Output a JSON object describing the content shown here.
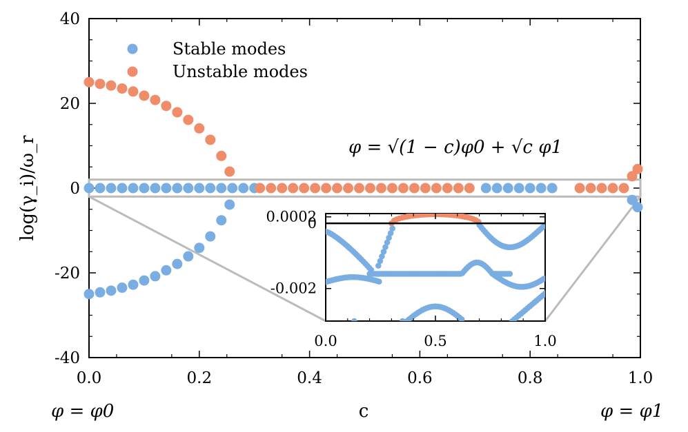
{
  "chart_data": {
    "type": "scatter",
    "xlabel": "c",
    "ylabel": "log(γ_i)/ω_r",
    "xlim": [
      0.0,
      1.0
    ],
    "ylim": [
      -40,
      40
    ],
    "x_ticks": [
      "0.0",
      "0.2",
      "0.4",
      "0.6",
      "0.8",
      "1.0"
    ],
    "y_ticks": [
      "40",
      "20",
      "0",
      "-20",
      "-40"
    ],
    "left_endpoint_label": "φ = φ0",
    "right_endpoint_label": "φ = φ1",
    "equation": "φ = √(1 − c)φ0 + √c φ1",
    "legend": [
      "Stable modes",
      "Unstable modes"
    ],
    "colors": {
      "stable": "#7aaee3",
      "unstable": "#ef8c6a",
      "highlight": "#bbbbbb"
    },
    "highlight_band": [
      -2,
      2
    ],
    "series": [
      {
        "name": "Stable modes",
        "near_zero_x": [
          0.0,
          0.02,
          0.04,
          0.06,
          0.08,
          0.1,
          0.12,
          0.14,
          0.16,
          0.18,
          0.2,
          0.22,
          0.24,
          0.26,
          0.28,
          0.3,
          0.72,
          0.74,
          0.76,
          0.78,
          0.8,
          0.82,
          0.84
        ],
        "negative_x": [
          0.0,
          0.02,
          0.04,
          0.06,
          0.08,
          0.1,
          0.12,
          0.14,
          0.16,
          0.18,
          0.2,
          0.22,
          0.24,
          0.255
        ],
        "negative_y": [
          -25,
          -24.6,
          -24.2,
          -23.5,
          -22.8,
          -21.8,
          -20.8,
          -19.4,
          -17.9,
          -16.1,
          -14.1,
          -11.4,
          -7.6,
          -3.9
        ],
        "endpoint_x": [
          0.985,
          0.995
        ],
        "endpoint_y": [
          -2.8,
          -4.5
        ]
      },
      {
        "name": "Unstable modes",
        "near_zero_x": [
          0.31,
          0.33,
          0.35,
          0.37,
          0.39,
          0.41,
          0.43,
          0.45,
          0.47,
          0.49,
          0.51,
          0.53,
          0.55,
          0.57,
          0.59,
          0.61,
          0.63,
          0.65,
          0.67,
          0.69,
          0.89,
          0.91,
          0.93,
          0.95,
          0.97
        ],
        "positive_x": [
          0.0,
          0.02,
          0.04,
          0.06,
          0.08,
          0.1,
          0.12,
          0.14,
          0.16,
          0.18,
          0.2,
          0.22,
          0.24,
          0.255
        ],
        "positive_y": [
          25,
          24.6,
          24.2,
          23.5,
          22.8,
          21.8,
          20.8,
          19.4,
          17.9,
          16.1,
          14.1,
          11.4,
          7.6,
          3.9
        ],
        "endpoint_x": [
          0.985,
          0.995
        ],
        "endpoint_y": [
          2.8,
          4.5
        ]
      }
    ],
    "inset": {
      "xlim": [
        0.0,
        1.0
      ],
      "ylim": [
        -0.003,
        0.0003
      ],
      "x_ticks": [
        "0.0",
        "0.5",
        "1.0"
      ],
      "y_ticks": [
        "0.0002",
        "0",
        "-0.002"
      ],
      "unstable_arc": {
        "x_start": 0.3,
        "x_end": 0.7,
        "peak": 0.00028
      },
      "stable_points": [
        [
          0.13,
          -0.003
        ],
        [
          0.35,
          -0.003
        ]
      ]
    }
  }
}
